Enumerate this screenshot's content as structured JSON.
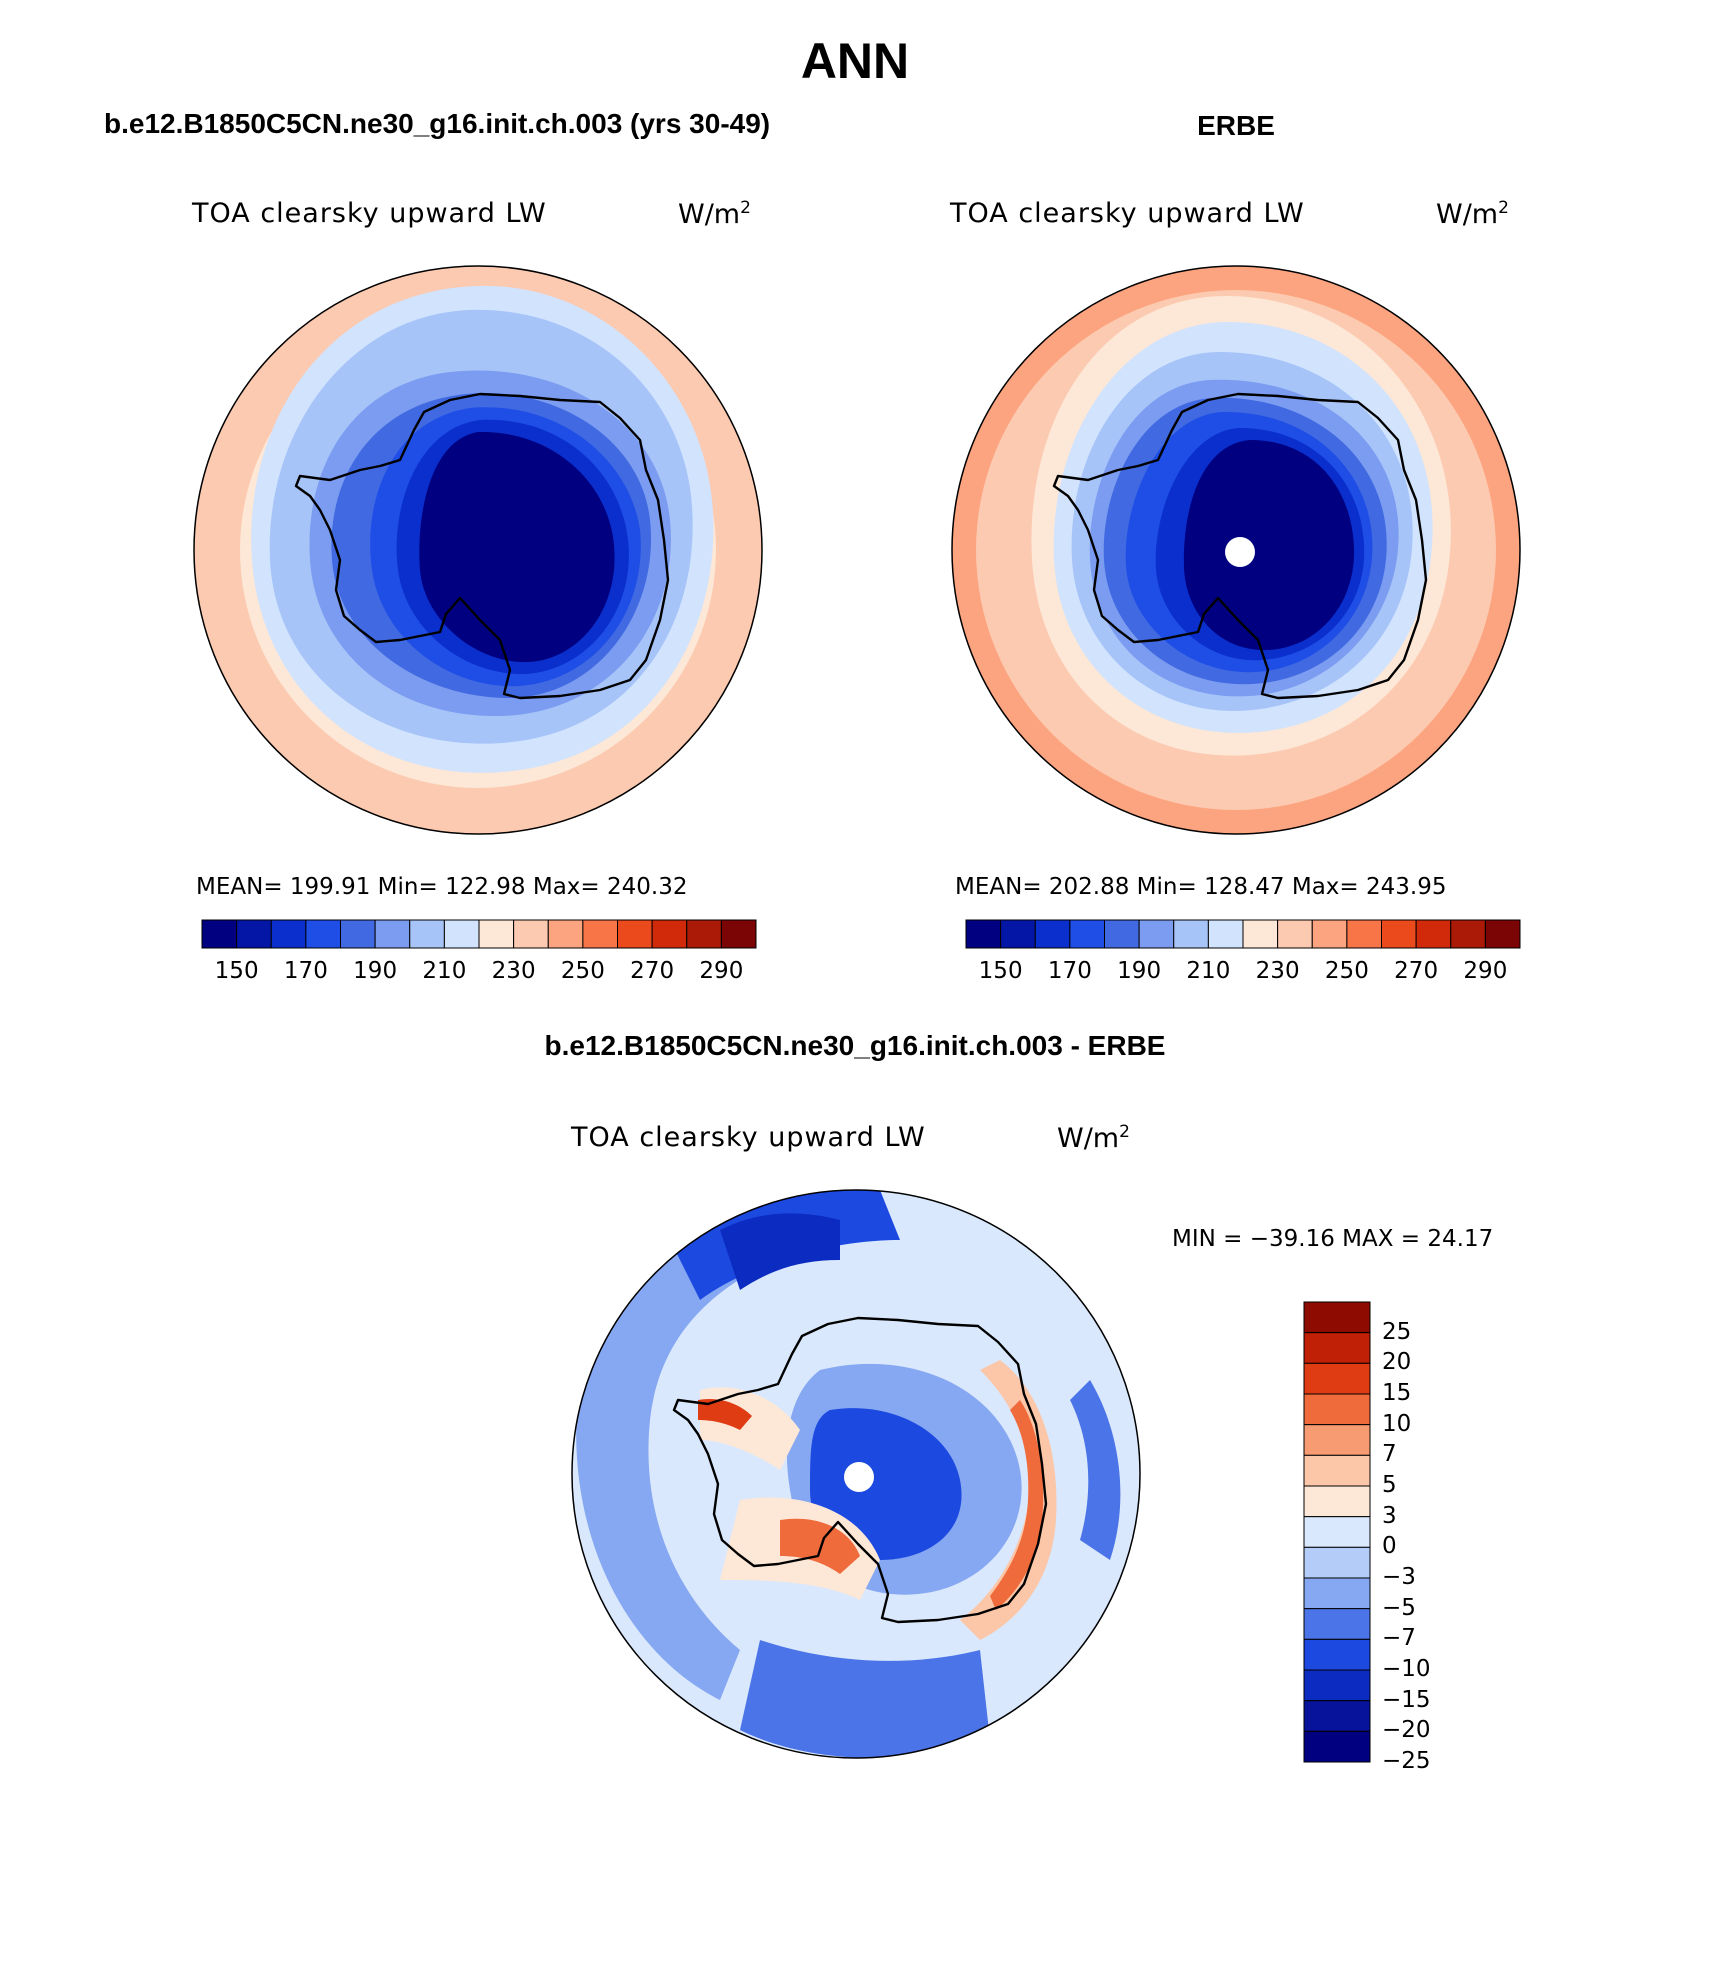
{
  "title": "ANN",
  "colors": {
    "abs_scale": [
      "#000080",
      "#0316a6",
      "#0a2fcc",
      "#1f4ee6",
      "#4169e1",
      "#7b9cf0",
      "#a7c4f9",
      "#d1e3fd",
      "#fde7d6",
      "#fccab0",
      "#fca37f",
      "#f87548",
      "#ea4a1c",
      "#d02a0b",
      "#aa1a06",
      "#7b0505"
    ],
    "diff_scale": [
      "#000080",
      "#06139a",
      "#0c2bc0",
      "#1c49e0",
      "#4b74e8",
      "#86a8f2",
      "#b4cdf8",
      "#d9e8fc",
      "#fde8d8",
      "#fbc7a8",
      "#f79b72",
      "#f06b3c",
      "#e03c14",
      "#c02006",
      "#8e0b02"
    ]
  },
  "panels": [
    {
      "header": "b.e12.B1850C5CN.ne30_g16.init.ch.003 (yrs 30-49)",
      "variable": "TOA clearsky upward LW",
      "units_base": "W/m",
      "units_exp": "2",
      "stats": "MEAN= 199.91   Min= 122.98   Max= 240.32",
      "colorbar_labels": [
        "150",
        "170",
        "190",
        "210",
        "230",
        "250",
        "270",
        "290"
      ]
    },
    {
      "header": "ERBE",
      "variable": "TOA clearsky upward LW",
      "units_base": "W/m",
      "units_exp": "2",
      "stats": "MEAN= 202.88   Min= 128.47   Max= 243.95",
      "colorbar_labels": [
        "150",
        "170",
        "190",
        "210",
        "230",
        "250",
        "270",
        "290"
      ]
    }
  ],
  "diff_panel": {
    "header": "b.e12.B1850C5CN.ne30_g16.init.ch.003 - ERBE",
    "variable": "TOA clearsky upward LW",
    "units_base": "W/m",
    "units_exp": "2",
    "stats": "MIN = −39.16 MAX =   24.17",
    "colorbar_labels": [
      "25",
      "20",
      "15",
      "10",
      "7",
      "5",
      "3",
      "0",
      "−3",
      "−5",
      "−7",
      "−10",
      "−15",
      "−20",
      "−25"
    ]
  }
}
